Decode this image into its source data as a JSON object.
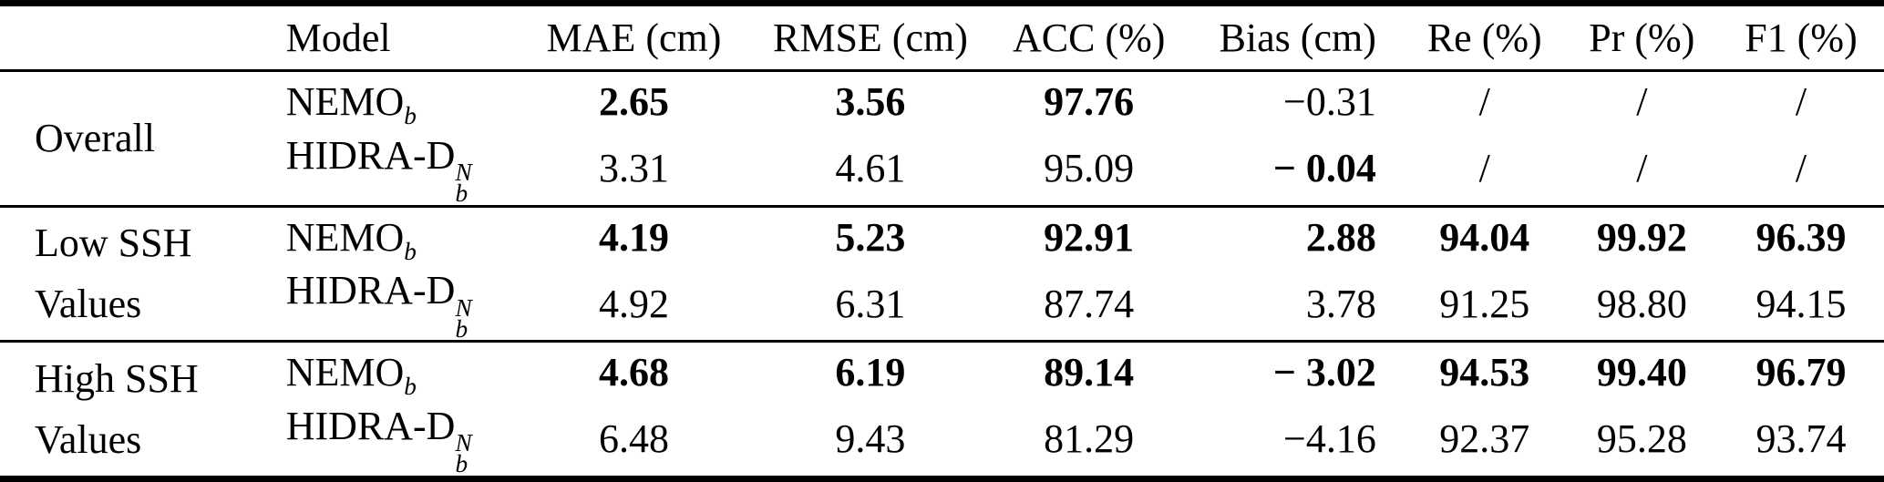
{
  "table": {
    "header": [
      "",
      "Model",
      "MAE (cm)",
      "RMSE (cm)",
      "ACC (%)",
      "Bias (cm)",
      "Re (%)",
      "Pr (%)",
      "F1 (%)"
    ],
    "groups": [
      {
        "label": "Overall",
        "rows": [
          {
            "model": {
              "base": "NEMO",
              "sub": "b"
            },
            "cells": [
              {
                "v": "2.65",
                "b": true
              },
              {
                "v": "3.56",
                "b": true
              },
              {
                "v": "97.76",
                "b": true
              },
              {
                "v": "−0.31",
                "b": false
              },
              {
                "v": "/",
                "b": false
              },
              {
                "v": "/",
                "b": false
              },
              {
                "v": "/",
                "b": false
              }
            ]
          },
          {
            "model": {
              "base": "HIDRA-D",
              "sup": "N",
              "sub": "b"
            },
            "cells": [
              {
                "v": "3.31",
                "b": false
              },
              {
                "v": "4.61",
                "b": false
              },
              {
                "v": "95.09",
                "b": false
              },
              {
                "v": "− 0.04",
                "b": true
              },
              {
                "v": "/",
                "b": false
              },
              {
                "v": "/",
                "b": false
              },
              {
                "v": "/",
                "b": false
              }
            ]
          }
        ]
      },
      {
        "label": "Low SSH Values",
        "rows": [
          {
            "model": {
              "base": "NEMO",
              "sub": "b"
            },
            "cells": [
              {
                "v": "4.19",
                "b": true
              },
              {
                "v": "5.23",
                "b": true
              },
              {
                "v": "92.91",
                "b": true
              },
              {
                "v": "2.88",
                "b": true
              },
              {
                "v": "94.04",
                "b": true
              },
              {
                "v": "99.92",
                "b": true
              },
              {
                "v": "96.39",
                "b": true
              }
            ]
          },
          {
            "model": {
              "base": "HIDRA-D",
              "sup": "N",
              "sub": "b"
            },
            "cells": [
              {
                "v": "4.92",
                "b": false
              },
              {
                "v": "6.31",
                "b": false
              },
              {
                "v": "87.74",
                "b": false
              },
              {
                "v": "3.78",
                "b": false
              },
              {
                "v": "91.25",
                "b": false
              },
              {
                "v": "98.80",
                "b": false
              },
              {
                "v": "94.15",
                "b": false
              }
            ]
          }
        ]
      },
      {
        "label": "High SSH Values",
        "rows": [
          {
            "model": {
              "base": "NEMO",
              "sub": "b"
            },
            "cells": [
              {
                "v": "4.68",
                "b": true
              },
              {
                "v": "6.19",
                "b": true
              },
              {
                "v": "89.14",
                "b": true
              },
              {
                "v": "− 3.02",
                "b": true
              },
              {
                "v": "94.53",
                "b": true
              },
              {
                "v": "99.40",
                "b": true
              },
              {
                "v": "96.79",
                "b": true
              }
            ]
          },
          {
            "model": {
              "base": "HIDRA-D",
              "sup": "N",
              "sub": "b"
            },
            "cells": [
              {
                "v": "6.48",
                "b": false
              },
              {
                "v": "9.43",
                "b": false
              },
              {
                "v": "81.29",
                "b": false
              },
              {
                "v": "−4.16",
                "b": false
              },
              {
                "v": "92.37",
                "b": false
              },
              {
                "v": "95.28",
                "b": false
              },
              {
                "v": "93.74",
                "b": false
              }
            ]
          }
        ]
      }
    ]
  }
}
